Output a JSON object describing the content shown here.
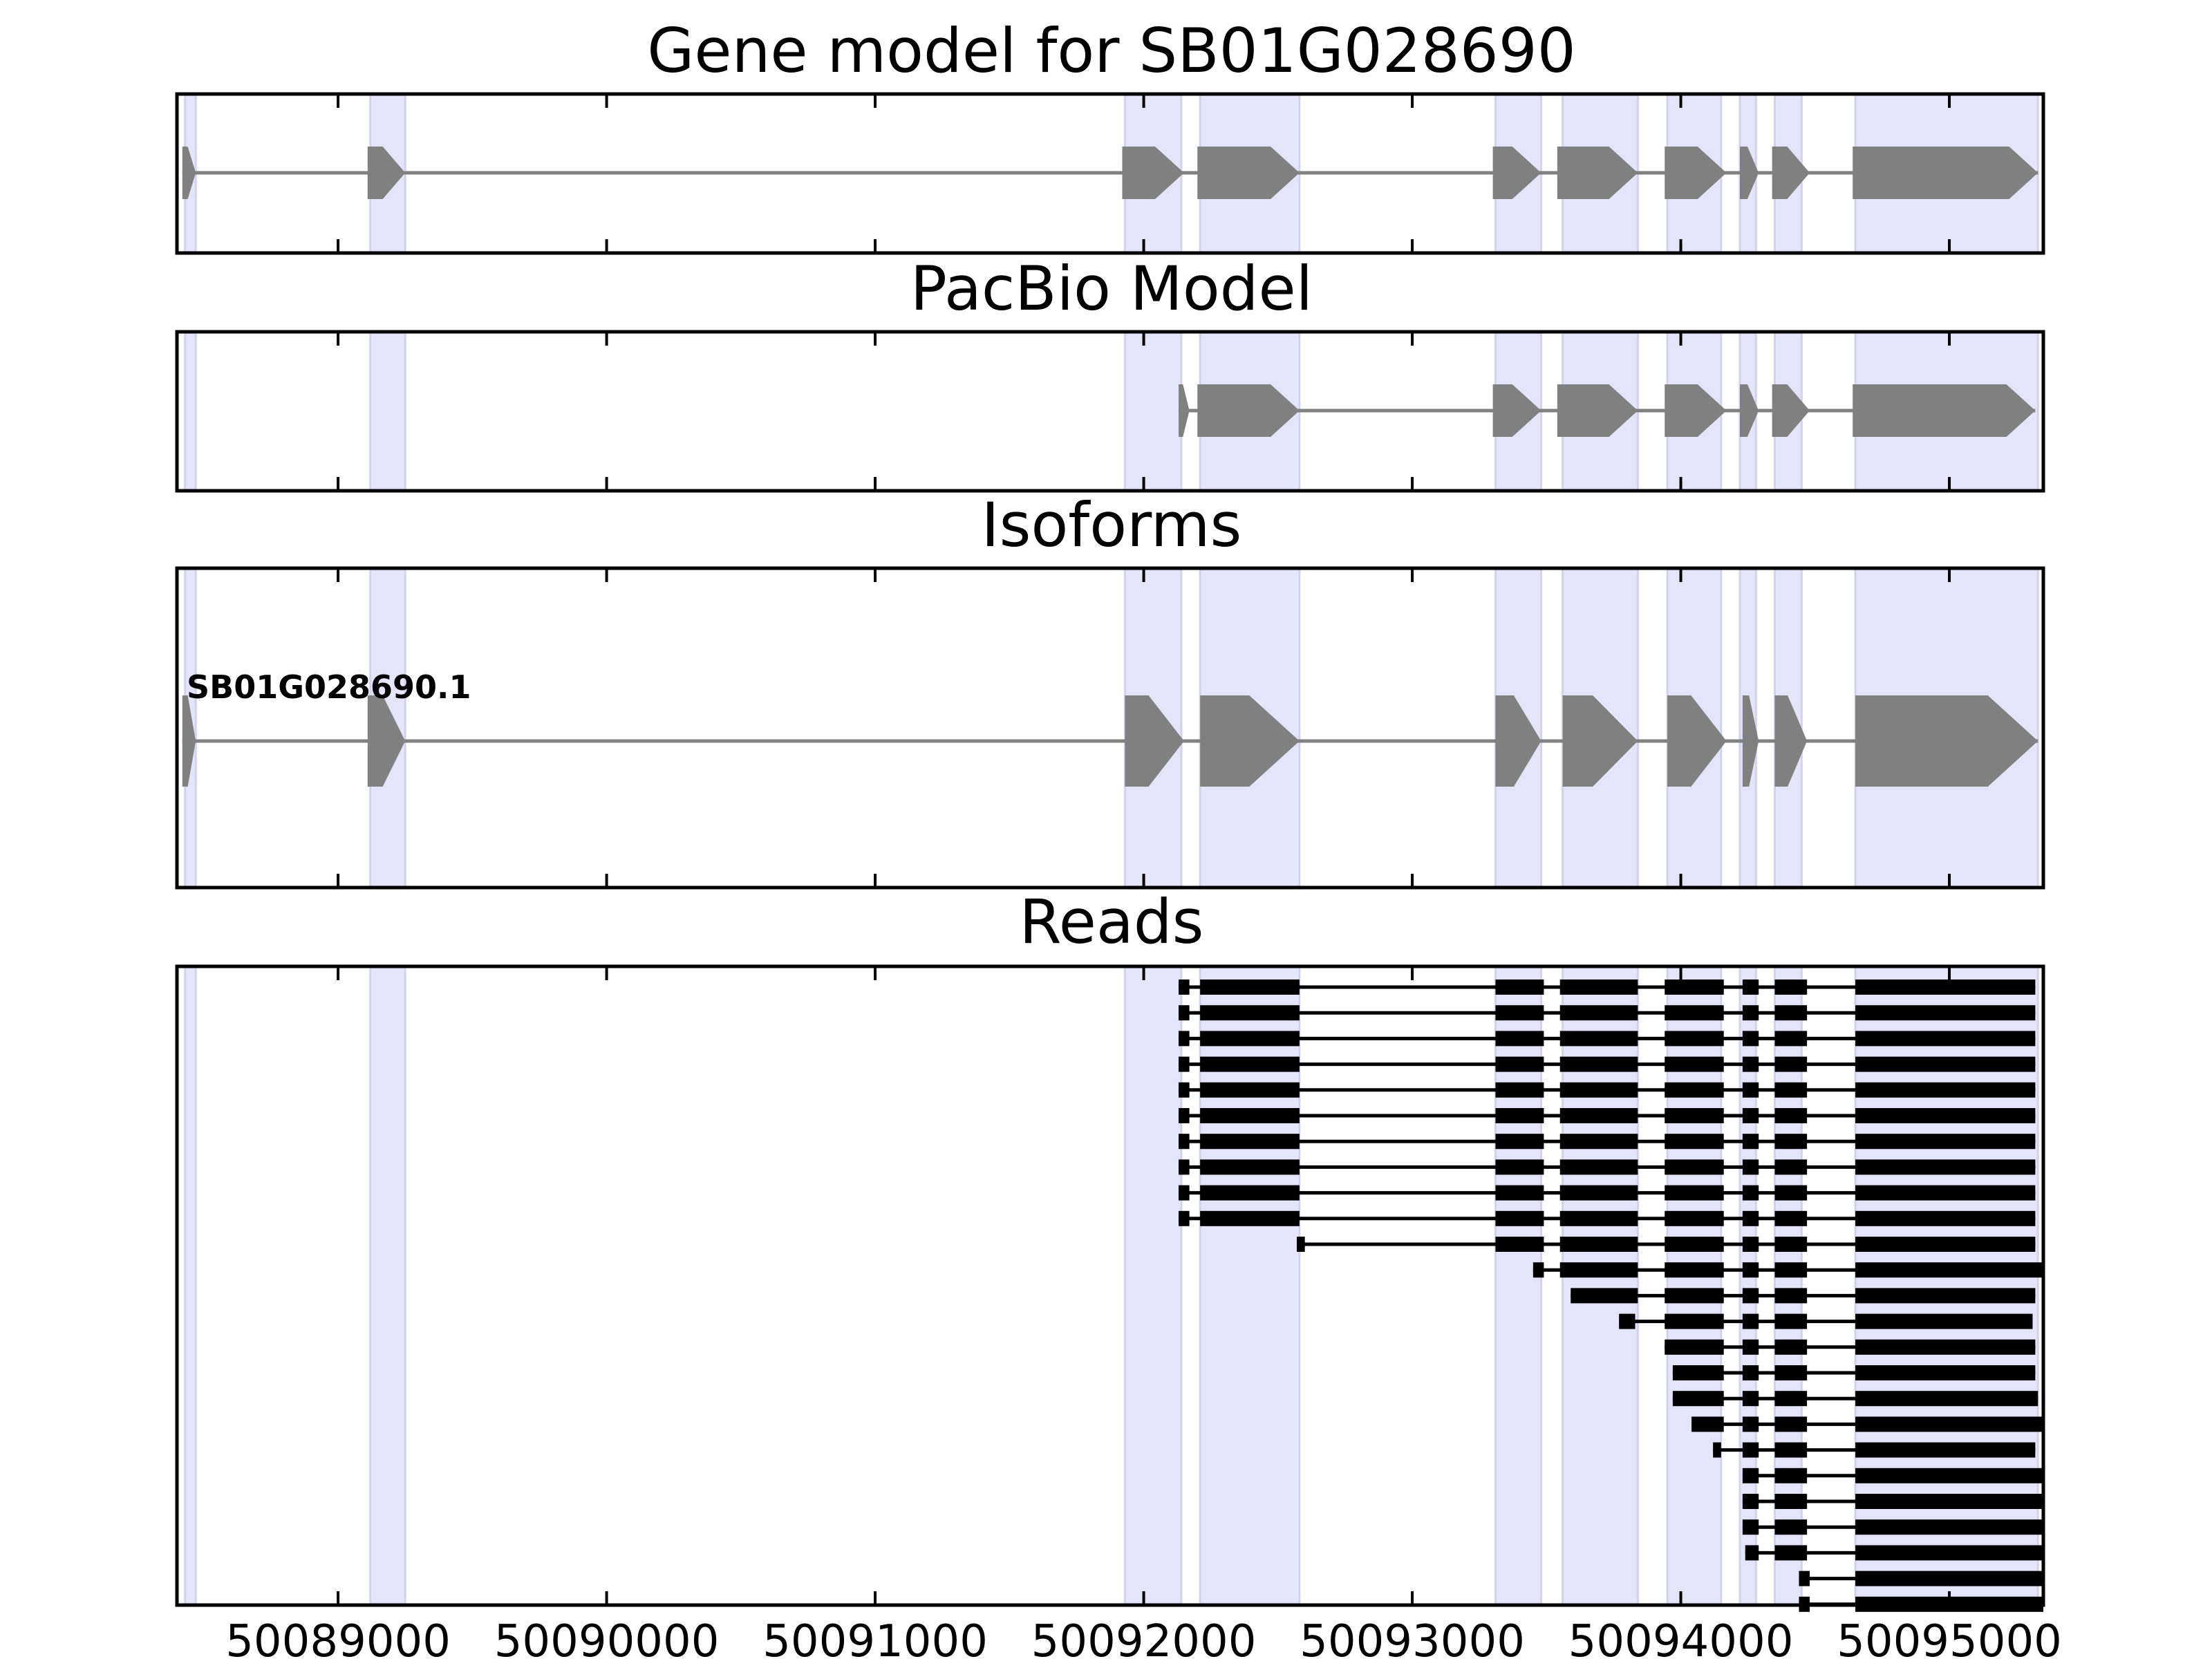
{
  "chart_data": {
    "type": "gene-structure",
    "gene_id": "SB01G028690",
    "x_axis": {
      "range": [
        50088400,
        50095350
      ],
      "ticks": [
        50089000,
        50090000,
        50091000,
        50092000,
        50093000,
        50094000,
        50095000
      ],
      "tick_labels": [
        "50089000",
        "50090000",
        "50091000",
        "50092000",
        "50093000",
        "50094000",
        "50095000"
      ]
    },
    "highlight_regions": [
      [
        50088430,
        50088470
      ],
      [
        50089120,
        50089250
      ],
      [
        50091930,
        50092140
      ],
      [
        50092210,
        50092580
      ],
      [
        50093310,
        50093480
      ],
      [
        50093560,
        50093840
      ],
      [
        50093950,
        50094150
      ],
      [
        50094220,
        50094280
      ],
      [
        50094350,
        50094450
      ],
      [
        50094650,
        50095330
      ]
    ],
    "panels": [
      {
        "title": "Gene model for SB01G028690",
        "tracks": [
          {
            "exons": [
              [
                50088420,
                50088470
              ],
              [
                50089110,
                50089250
              ],
              [
                50091920,
                50092150
              ],
              [
                50092200,
                50092580
              ],
              [
                50093300,
                50093480
              ],
              [
                50093540,
                50093840
              ],
              [
                50093940,
                50094170
              ],
              [
                50094220,
                50094290
              ],
              [
                50094340,
                50094480
              ],
              [
                50094640,
                50095330
              ]
            ]
          }
        ]
      },
      {
        "title": "PacBio Model",
        "tracks": [
          {
            "exons": [
              [
                50092130,
                50092170
              ],
              [
                50092200,
                50092580
              ],
              [
                50093300,
                50093480
              ],
              [
                50093540,
                50093840
              ],
              [
                50093940,
                50094170
              ],
              [
                50094220,
                50094290
              ],
              [
                50094340,
                50094480
              ],
              [
                50094640,
                50095320
              ]
            ]
          }
        ]
      },
      {
        "title": "Isoforms",
        "tracks": [
          {
            "label": "SB01G028690.1",
            "exons": [
              [
                50088420,
                50088470
              ],
              [
                50089110,
                50089250
              ],
              [
                50091930,
                50092150
              ],
              [
                50092210,
                50092580
              ],
              [
                50093310,
                50093480
              ],
              [
                50093560,
                50093840
              ],
              [
                50093950,
                50094170
              ],
              [
                50094230,
                50094290
              ],
              [
                50094350,
                50094470
              ],
              [
                50094650,
                50095330
              ]
            ]
          }
        ]
      },
      {
        "title": "Reads",
        "tracks": [
          {
            "exons": [
              [
                50092130,
                50092170
              ],
              [
                50092210,
                50092580
              ],
              [
                50093310,
                50093490
              ],
              [
                50093550,
                50093840
              ],
              [
                50093940,
                50094160
              ],
              [
                50094230,
                50094290
              ],
              [
                50094350,
                50094470
              ],
              [
                50094650,
                50095320
              ]
            ]
          },
          {
            "exons": [
              [
                50092130,
                50092170
              ],
              [
                50092210,
                50092580
              ],
              [
                50093310,
                50093490
              ],
              [
                50093550,
                50093840
              ],
              [
                50093940,
                50094160
              ],
              [
                50094230,
                50094290
              ],
              [
                50094350,
                50094470
              ],
              [
                50094650,
                50095320
              ]
            ]
          },
          {
            "exons": [
              [
                50092130,
                50092170
              ],
              [
                50092210,
                50092580
              ],
              [
                50093310,
                50093490
              ],
              [
                50093550,
                50093840
              ],
              [
                50093940,
                50094160
              ],
              [
                50094230,
                50094290
              ],
              [
                50094350,
                50094470
              ],
              [
                50094650,
                50095320
              ]
            ]
          },
          {
            "exons": [
              [
                50092130,
                50092170
              ],
              [
                50092210,
                50092580
              ],
              [
                50093310,
                50093490
              ],
              [
                50093550,
                50093840
              ],
              [
                50093940,
                50094160
              ],
              [
                50094230,
                50094290
              ],
              [
                50094350,
                50094470
              ],
              [
                50094650,
                50095320
              ]
            ]
          },
          {
            "exons": [
              [
                50092130,
                50092170
              ],
              [
                50092210,
                50092580
              ],
              [
                50093310,
                50093490
              ],
              [
                50093550,
                50093840
              ],
              [
                50093940,
                50094160
              ],
              [
                50094230,
                50094290
              ],
              [
                50094350,
                50094470
              ],
              [
                50094650,
                50095320
              ]
            ]
          },
          {
            "exons": [
              [
                50092130,
                50092170
              ],
              [
                50092210,
                50092580
              ],
              [
                50093310,
                50093490
              ],
              [
                50093550,
                50093840
              ],
              [
                50093940,
                50094160
              ],
              [
                50094230,
                50094290
              ],
              [
                50094350,
                50094470
              ],
              [
                50094650,
                50095320
              ]
            ]
          },
          {
            "exons": [
              [
                50092130,
                50092170
              ],
              [
                50092210,
                50092580
              ],
              [
                50093310,
                50093490
              ],
              [
                50093550,
                50093840
              ],
              [
                50093940,
                50094160
              ],
              [
                50094230,
                50094290
              ],
              [
                50094350,
                50094470
              ],
              [
                50094650,
                50095320
              ]
            ]
          },
          {
            "exons": [
              [
                50092130,
                50092170
              ],
              [
                50092210,
                50092580
              ],
              [
                50093310,
                50093490
              ],
              [
                50093550,
                50093840
              ],
              [
                50093940,
                50094160
              ],
              [
                50094230,
                50094290
              ],
              [
                50094350,
                50094470
              ],
              [
                50094650,
                50095320
              ]
            ]
          },
          {
            "exons": [
              [
                50092130,
                50092170
              ],
              [
                50092210,
                50092580
              ],
              [
                50093310,
                50093490
              ],
              [
                50093550,
                50093840
              ],
              [
                50093940,
                50094160
              ],
              [
                50094230,
                50094290
              ],
              [
                50094350,
                50094470
              ],
              [
                50094650,
                50095320
              ]
            ]
          },
          {
            "exons": [
              [
                50092130,
                50092170
              ],
              [
                50092210,
                50092580
              ],
              [
                50093310,
                50093490
              ],
              [
                50093550,
                50093840
              ],
              [
                50093940,
                50094160
              ],
              [
                50094230,
                50094290
              ],
              [
                50094350,
                50094470
              ],
              [
                50094650,
                50095320
              ]
            ]
          },
          {
            "exons": [
              [
                50092570,
                50092600
              ],
              [
                50093310,
                50093490
              ],
              [
                50093550,
                50093840
              ],
              [
                50093940,
                50094160
              ],
              [
                50094230,
                50094290
              ],
              [
                50094350,
                50094470
              ],
              [
                50094650,
                50095320
              ]
            ]
          },
          {
            "exons": [
              [
                50093450,
                50093490
              ],
              [
                50093550,
                50093840
              ],
              [
                50093940,
                50094160
              ],
              [
                50094230,
                50094290
              ],
              [
                50094350,
                50094470
              ],
              [
                50094650,
                50095350
              ]
            ]
          },
          {
            "exons": [
              [
                50093590,
                50093840
              ],
              [
                50093940,
                50094160
              ],
              [
                50094230,
                50094290
              ],
              [
                50094350,
                50094470
              ],
              [
                50094650,
                50095320
              ]
            ]
          },
          {
            "exons": [
              [
                50093770,
                50093830
              ],
              [
                50093940,
                50094160
              ],
              [
                50094230,
                50094290
              ],
              [
                50094350,
                50094470
              ],
              [
                50094650,
                50095310
              ]
            ]
          },
          {
            "exons": [
              [
                50093940,
                50094160
              ],
              [
                50094230,
                50094290
              ],
              [
                50094350,
                50094470
              ],
              [
                50094650,
                50095320
              ]
            ]
          },
          {
            "exons": [
              [
                50093970,
                50094160
              ],
              [
                50094230,
                50094290
              ],
              [
                50094350,
                50094470
              ],
              [
                50094650,
                50095320
              ]
            ]
          },
          {
            "exons": [
              [
                50093970,
                50094160
              ],
              [
                50094230,
                50094290
              ],
              [
                50094350,
                50094470
              ],
              [
                50094650,
                50095330
              ]
            ]
          },
          {
            "exons": [
              [
                50094040,
                50094160
              ],
              [
                50094230,
                50094290
              ],
              [
                50094350,
                50094470
              ],
              [
                50094650,
                50095350
              ]
            ]
          },
          {
            "exons": [
              [
                50094120,
                50094150
              ],
              [
                50094230,
                50094290
              ],
              [
                50094350,
                50094470
              ],
              [
                50094650,
                50095320
              ]
            ]
          },
          {
            "exons": [
              [
                50094230,
                50094290
              ],
              [
                50094350,
                50094470
              ],
              [
                50094650,
                50095350
              ]
            ]
          },
          {
            "exons": [
              [
                50094230,
                50094290
              ],
              [
                50094350,
                50094470
              ],
              [
                50094650,
                50095350
              ]
            ]
          },
          {
            "exons": [
              [
                50094230,
                50094290
              ],
              [
                50094350,
                50094470
              ],
              [
                50094650,
                50095350
              ]
            ]
          },
          {
            "exons": [
              [
                50094240,
                50094290
              ],
              [
                50094350,
                50094470
              ],
              [
                50094650,
                50095350
              ]
            ]
          },
          {
            "exons": [
              [
                50094440,
                50094480
              ],
              [
                50094650,
                50095350
              ]
            ]
          },
          {
            "exons": [
              [
                50094440,
                50094480
              ],
              [
                50094650,
                50095350
              ]
            ]
          }
        ]
      }
    ]
  }
}
